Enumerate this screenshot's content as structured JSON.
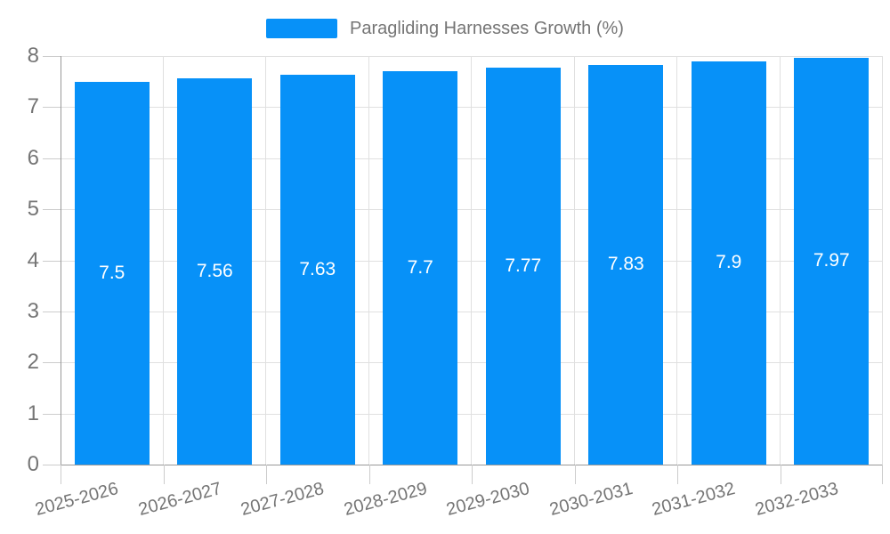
{
  "chart_data": {
    "type": "bar",
    "title": "Paragliding Harnesses Growth (%)",
    "categories": [
      "2025-2026",
      "2026-2027",
      "2027-2028",
      "2028-2029",
      "2029-2030",
      "2030-2031",
      "2031-2032",
      "2032-2033"
    ],
    "values": [
      7.5,
      7.56,
      7.63,
      7.7,
      7.77,
      7.83,
      7.9,
      7.97
    ],
    "value_labels": [
      "7.5",
      "7.56",
      "7.63",
      "7.7",
      "7.77",
      "7.83",
      "7.9",
      "7.97"
    ],
    "xlabel": "",
    "ylabel": "",
    "ylim": [
      0,
      8
    ],
    "y_ticks": [
      0,
      1,
      2,
      3,
      4,
      5,
      6,
      7,
      8
    ],
    "grid": true,
    "legend_position": "top-center",
    "value_label_position": "middle",
    "colors": {
      "bar": "#0791f8",
      "grid": "#e0e0e0",
      "axis_line": "#999999",
      "tick": "#cccccc",
      "axis_text": "#757575",
      "value_text": "#ffffff"
    }
  }
}
